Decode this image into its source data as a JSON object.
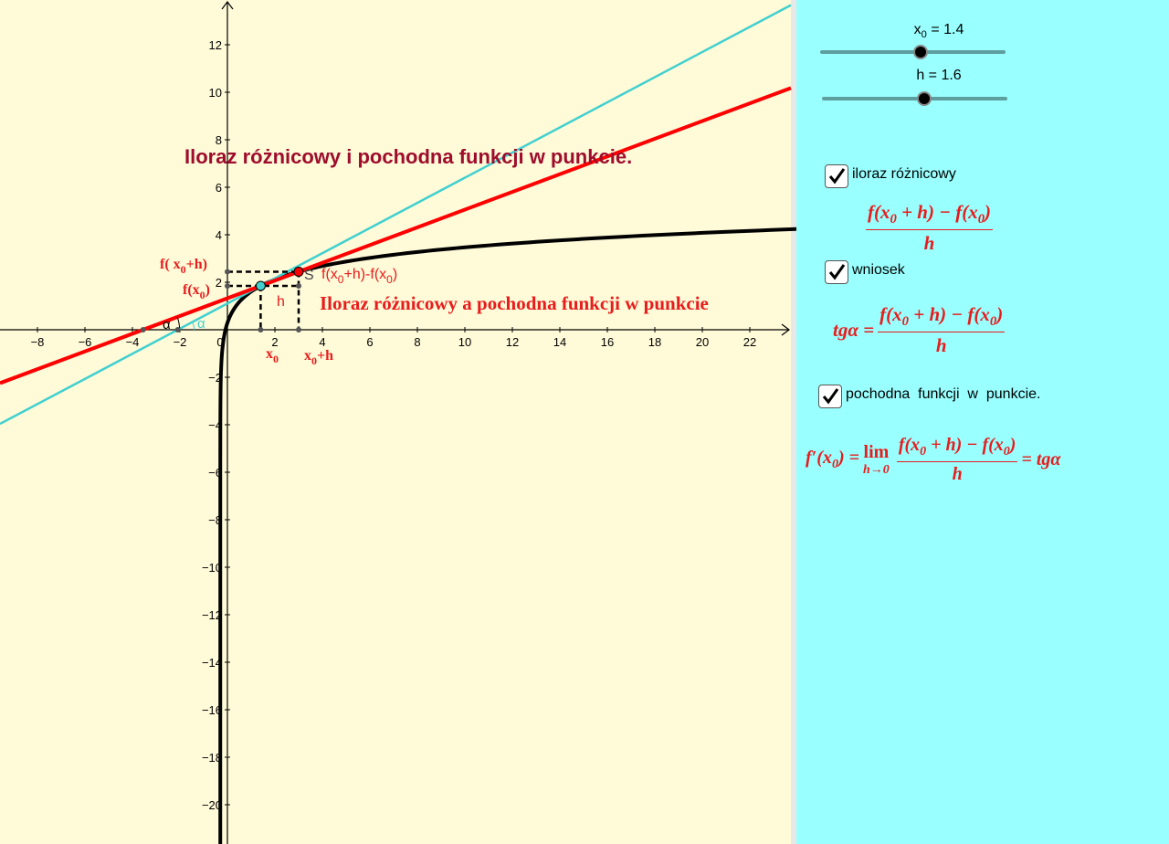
{
  "graph": {
    "title": "Iloraz różnicowy i pochodna funkcji w punkcie.",
    "subtitle": "Iloraz różnicowy a pochodna funkcji w punkcie",
    "x_tick_labels": [
      "−8",
      "−6",
      "−4",
      "−2",
      "0",
      "2",
      "4",
      "6",
      "8",
      "10",
      "12",
      "14",
      "16",
      "18",
      "20",
      "22"
    ],
    "y_tick_labels": [
      "12",
      "10",
      "8",
      "6",
      "4",
      "2",
      "−2",
      "−4",
      "−6",
      "−8",
      "−10",
      "−12",
      "−14",
      "−16",
      "−18",
      "−20"
    ],
    "labels": {
      "f_x0_h": [
        "f( x",
        {
          "sub": "0"
        },
        "+h)"
      ],
      "f_x0": [
        "f(x",
        {
          "sub": "0"
        },
        ")"
      ],
      "x0": [
        "x",
        {
          "sub": "0"
        }
      ],
      "x0_h": [
        "x",
        {
          "sub": "0"
        },
        "+h"
      ],
      "h": [
        "h"
      ],
      "s": [
        "S"
      ],
      "diff": [
        "f(x",
        {
          "sub": "0"
        },
        "+h)-f(x",
        {
          "sub": "0"
        },
        ")"
      ],
      "alpha_black": [
        "α"
      ],
      "alpha_cyan": [
        "α"
      ]
    }
  },
  "panel": {
    "sliders": [
      [
        "x",
        {
          "sub": "0"
        },
        " = 1.4"
      ],
      [
        "h = 1.6"
      ]
    ],
    "checkboxes": [
      "iloraz różnicowy",
      "wniosek",
      "pochodna  funkcji  w  punkcie."
    ],
    "formula1": {
      "num": [
        "f(x",
        {
          "sub": "0"
        },
        " + h) − f(x",
        {
          "sub": "0"
        },
        ")"
      ],
      "den": [
        "h"
      ]
    },
    "formula2": {
      "lhs": [
        "tgα ="
      ],
      "num": [
        "f(x",
        {
          "sub": "0"
        },
        " + h) − f(x",
        {
          "sub": "0"
        },
        ")"
      ],
      "den": [
        "h"
      ]
    },
    "formula3": {
      "lhs": [
        "f′(x",
        {
          "sub": "0"
        },
        ") ="
      ],
      "lim": "lim",
      "lim_sub": "h→0",
      "num": [
        "f(x",
        {
          "sub": "0"
        },
        " + h) − f(x",
        {
          "sub": "0"
        },
        ")"
      ],
      "den": [
        "h"
      ],
      "rhs": [
        "= tgα"
      ]
    }
  }
}
